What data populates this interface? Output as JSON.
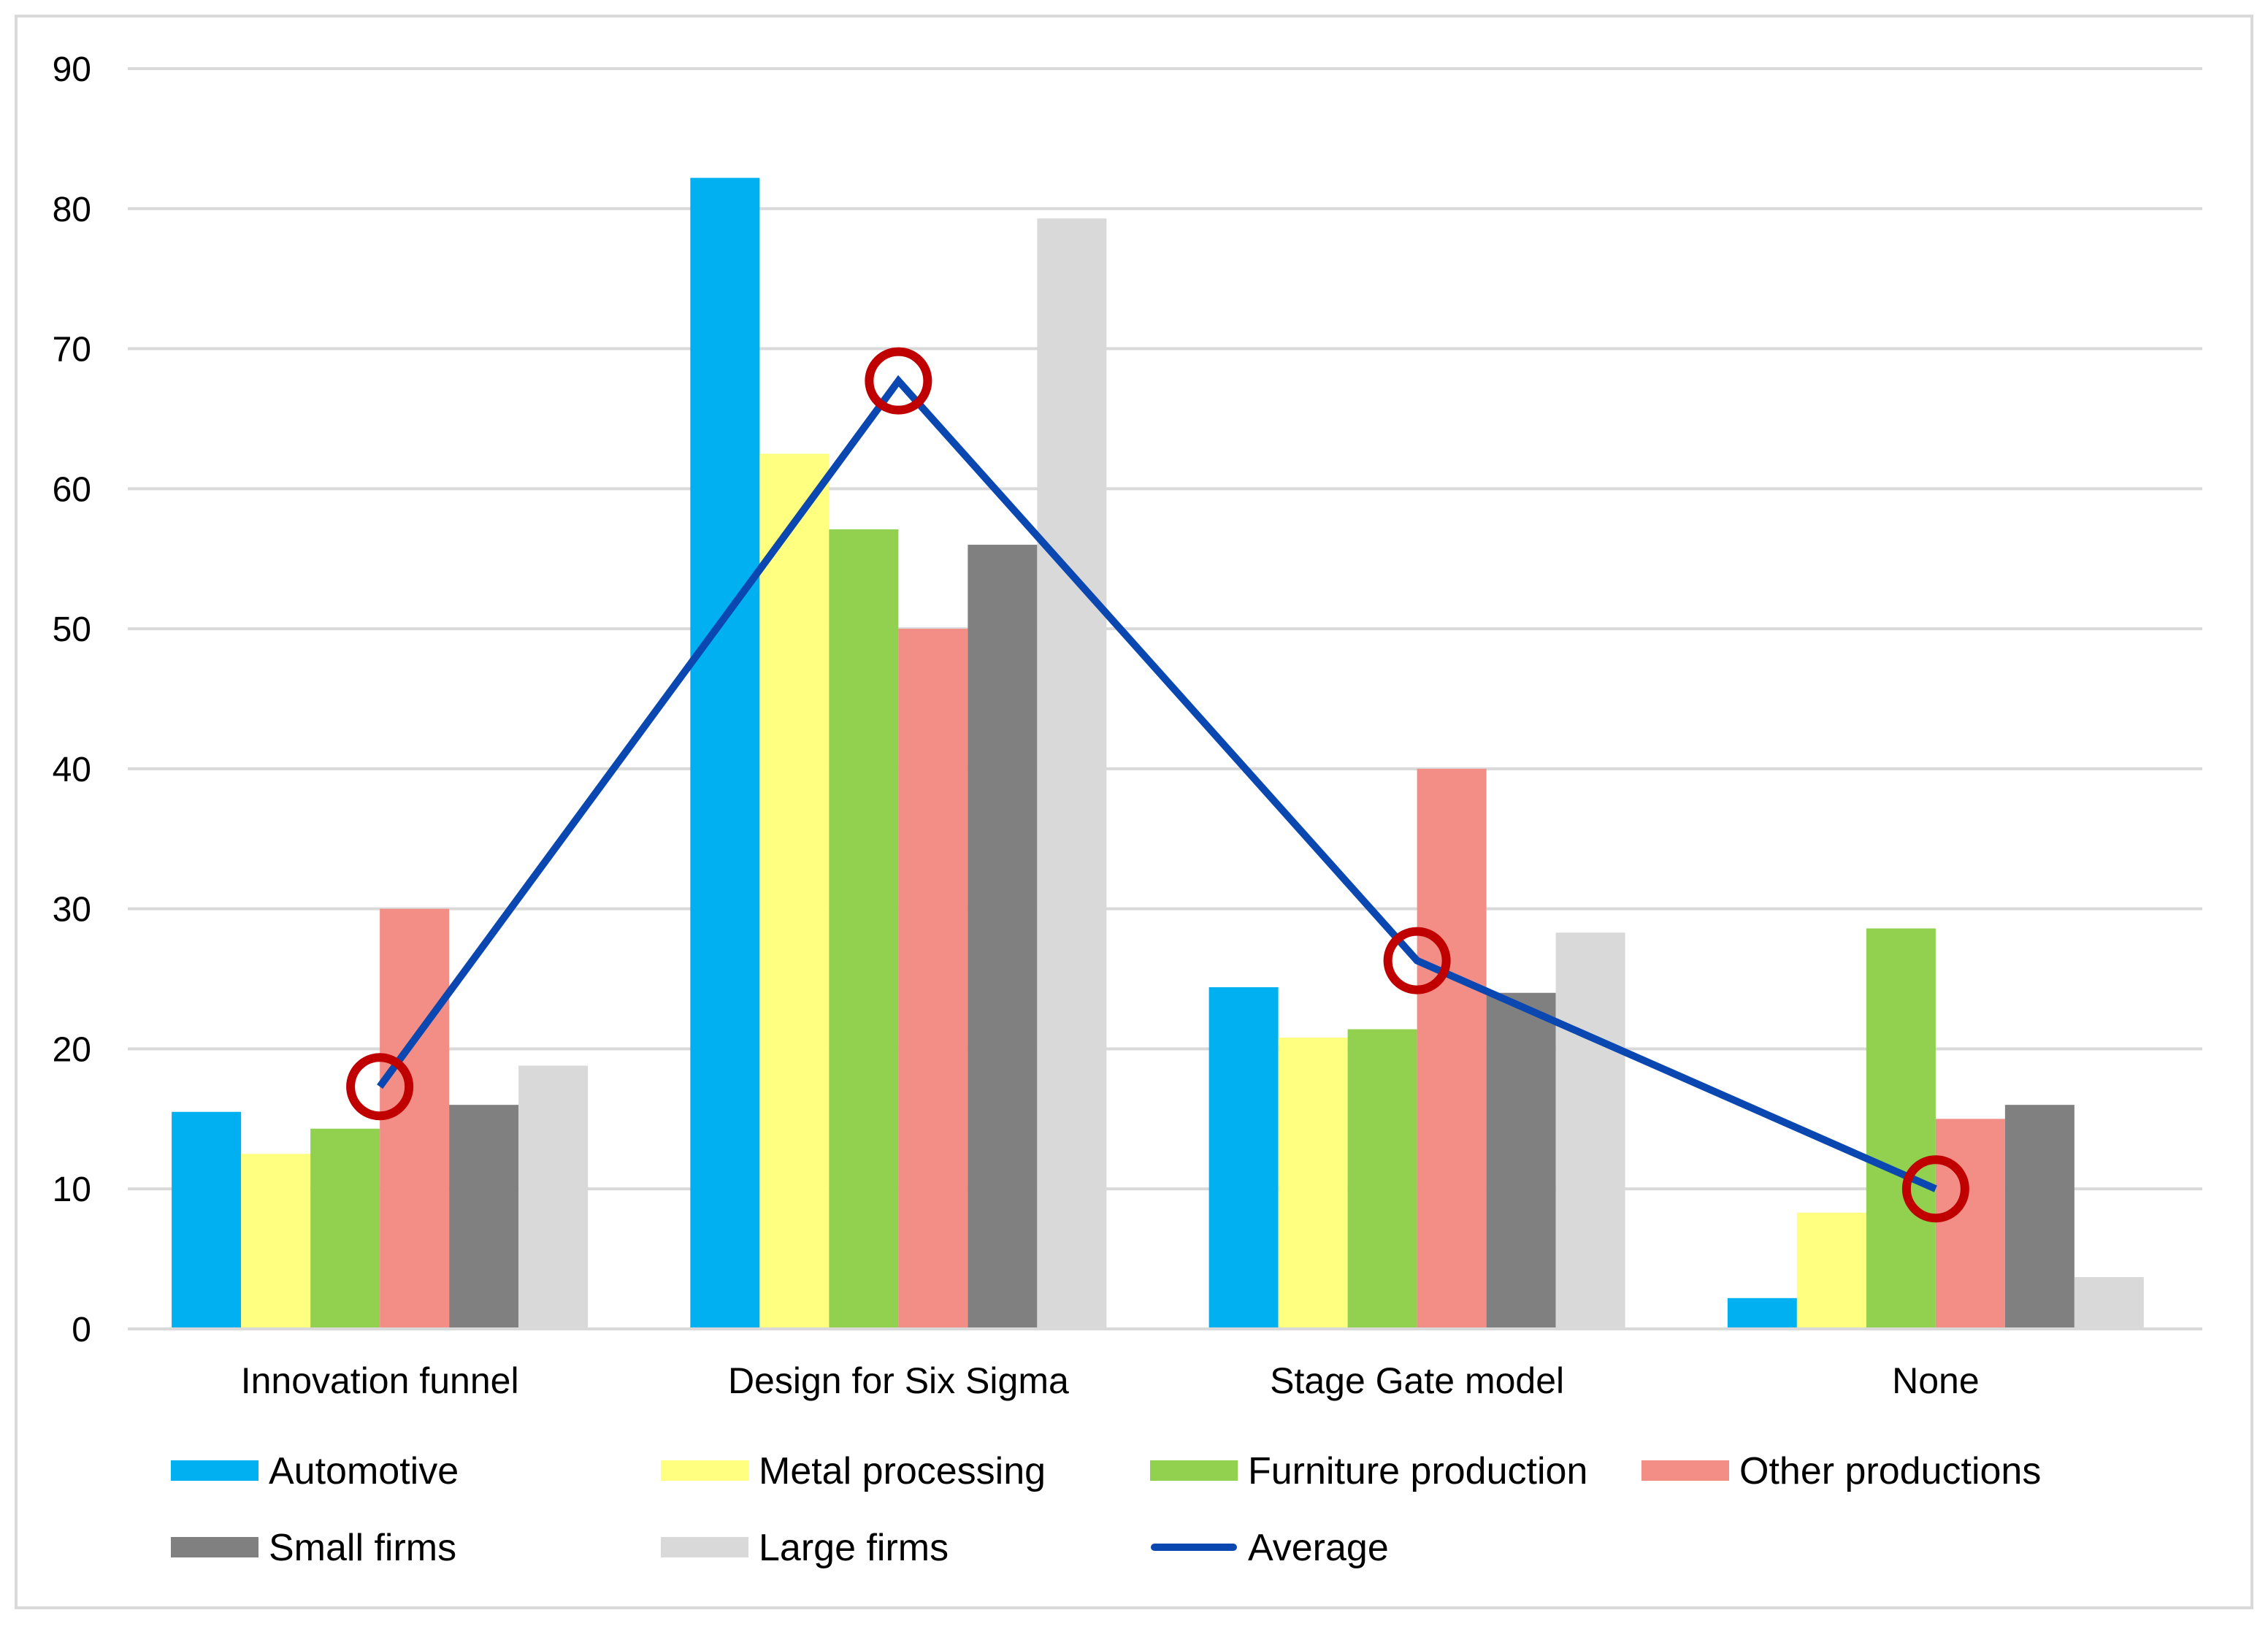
{
  "chart_data": {
    "type": "bar",
    "title": "",
    "xlabel": "",
    "ylabel": "",
    "ylim": [
      0,
      90
    ],
    "yticks": [
      0,
      10,
      20,
      30,
      40,
      50,
      60,
      70,
      80,
      90
    ],
    "grid": true,
    "legend_position": "bottom",
    "categories": [
      "Innovation funnel",
      "Design for Six Sigma",
      "Stage Gate model",
      "None"
    ],
    "series": [
      {
        "name": "Automotive",
        "color": "#00B0F0",
        "values": [
          15.5,
          82.2,
          24.4,
          2.2
        ]
      },
      {
        "name": "Metal processing",
        "color": "#FFFF80",
        "values": [
          12.5,
          62.5,
          20.8,
          8.3
        ]
      },
      {
        "name": "Furniture production",
        "color": "#92D050",
        "values": [
          14.3,
          57.1,
          21.4,
          28.6
        ]
      },
      {
        "name": "Other productions",
        "color": "#F28E86",
        "values": [
          30.0,
          50.0,
          40.0,
          15.0
        ]
      },
      {
        "name": "Small firms",
        "color": "#808080",
        "values": [
          16.0,
          56.0,
          24.0,
          16.0
        ]
      },
      {
        "name": "Large firms",
        "color": "#D9D9D9",
        "values": [
          18.8,
          79.3,
          28.3,
          3.7
        ]
      }
    ],
    "line": {
      "name": "Average",
      "color": "#0A47B0",
      "values": [
        17.3,
        67.7,
        26.3,
        10.0
      ]
    },
    "markers": {
      "shape": "circle",
      "color": "#C00000",
      "on": "Average"
    }
  }
}
